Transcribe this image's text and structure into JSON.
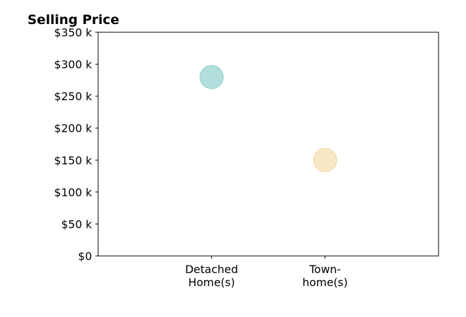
{
  "chart_data": {
    "type": "scatter",
    "title": "Selling Price",
    "xlabel": "",
    "ylabel": "",
    "categories": [
      "Detached\nHome(s)",
      "Town-\nhome(s)"
    ],
    "values": [
      280000,
      150000
    ],
    "point_colors": [
      "#b2dfdb",
      "#f9e8c4"
    ],
    "point_edge_colors": [
      "#8ccfc9",
      "#f1dba8"
    ],
    "ylim": [
      0,
      350000
    ],
    "yticks": [
      0,
      50000,
      100000,
      150000,
      200000,
      250000,
      300000,
      350000
    ],
    "ytick_labels": [
      "$0",
      "$50 k",
      "$100 k",
      "$150 k",
      "$200 k",
      "$250 k",
      "$300 k",
      "$350 k"
    ],
    "grid": false,
    "legend": "none"
  }
}
